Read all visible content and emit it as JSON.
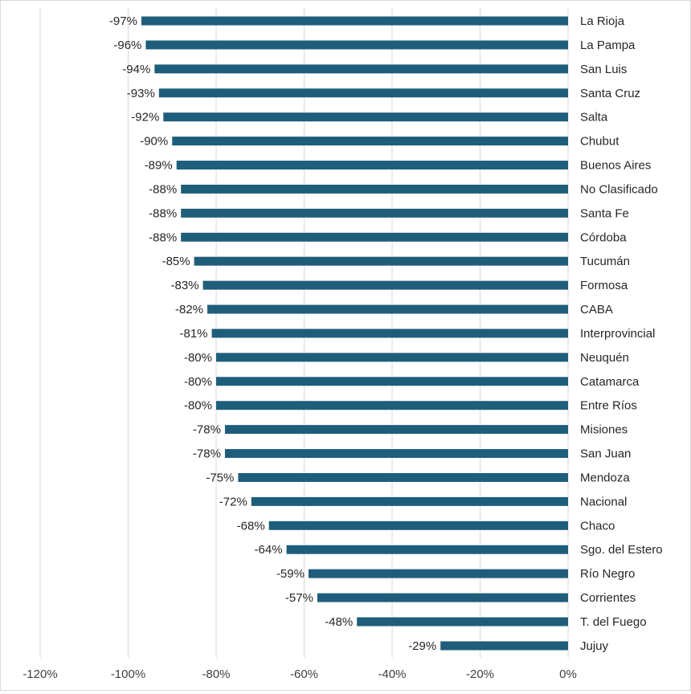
{
  "chart_data": {
    "type": "bar",
    "orientation": "horizontal",
    "title": "",
    "xlabel": "",
    "ylabel": "",
    "xlim": [
      -120,
      0
    ],
    "x_ticks": [
      -120,
      -100,
      -80,
      -60,
      -40,
      -20,
      0
    ],
    "x_tick_labels": [
      "-120%",
      "-100%",
      "-80%",
      "-60%",
      "-40%",
      "-20%",
      "0%"
    ],
    "grid": "vertical",
    "bar_color": "#1f5e7a",
    "grid_color": "#d9d9d9",
    "categories": [
      "La Rioja",
      "La Pampa",
      "San Luis",
      "Santa Cruz",
      "Salta",
      "Chubut",
      "Buenos Aires",
      "No Clasificado",
      "Santa Fe",
      "Córdoba",
      "Tucumán",
      "Formosa",
      "CABA",
      "Interprovincial",
      "Neuquén",
      "Catamarca",
      "Entre Ríos",
      "Misiones",
      "San Juan",
      "Mendoza",
      "Nacional",
      "Chaco",
      "Sgo. del Estero",
      "Río Negro",
      "Corrientes",
      "T. del Fuego",
      "Jujuy"
    ],
    "values": [
      -97,
      -96,
      -94,
      -93,
      -92,
      -90,
      -89,
      -88,
      -88,
      -88,
      -85,
      -83,
      -82,
      -81,
      -80,
      -80,
      -80,
      -78,
      -78,
      -75,
      -72,
      -68,
      -64,
      -59,
      -57,
      -48,
      -29
    ],
    "data_labels": [
      "-97%",
      "-96%",
      "-94%",
      "-93%",
      "-92%",
      "-90%",
      "-89%",
      "-88%",
      "-88%",
      "-88%",
      "-85%",
      "-83%",
      "-82%",
      "-81%",
      "-80%",
      "-80%",
      "-80%",
      "-78%",
      "-78%",
      "-75%",
      "-72%",
      "-68%",
      "-64%",
      "-59%",
      "-57%",
      "-48%",
      "-29%"
    ]
  }
}
